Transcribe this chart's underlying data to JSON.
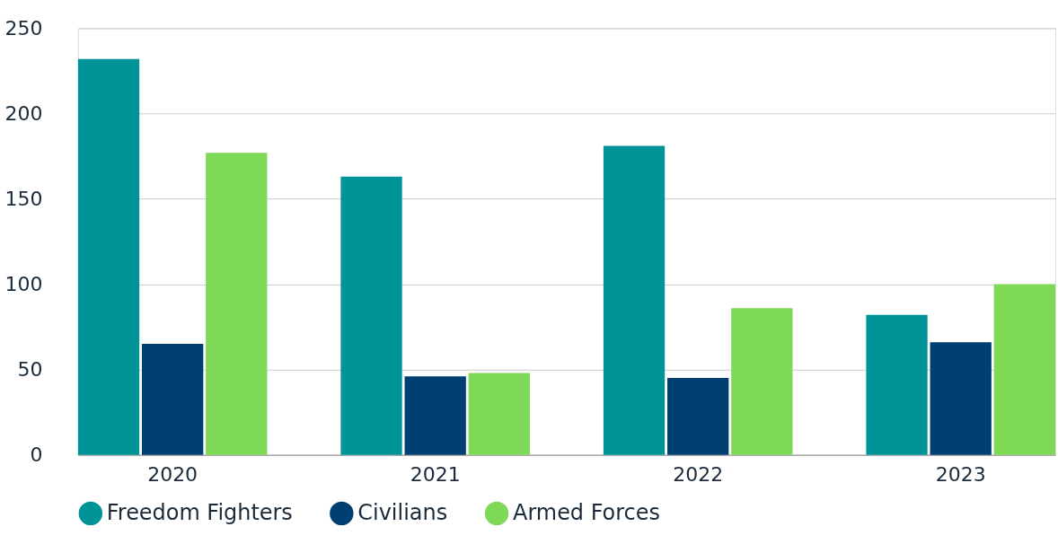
{
  "chart_data": {
    "type": "bar",
    "categories": [
      "2020",
      "2021",
      "2022",
      "2023"
    ],
    "series": [
      {
        "name": "Freedom Fighters",
        "color": "#009499",
        "values": [
          232,
          163,
          181,
          82
        ]
      },
      {
        "name": "Civilians",
        "color": "#003f72",
        "values": [
          65,
          46,
          45,
          66
        ]
      },
      {
        "name": "Armed Forces",
        "color": "#7ed957",
        "values": [
          177,
          48,
          86,
          100
        ]
      }
    ],
    "ylim": [
      0,
      250
    ],
    "yticks": [
      0,
      50,
      100,
      150,
      200,
      250
    ],
    "grid": "y",
    "legend": "bottom"
  }
}
